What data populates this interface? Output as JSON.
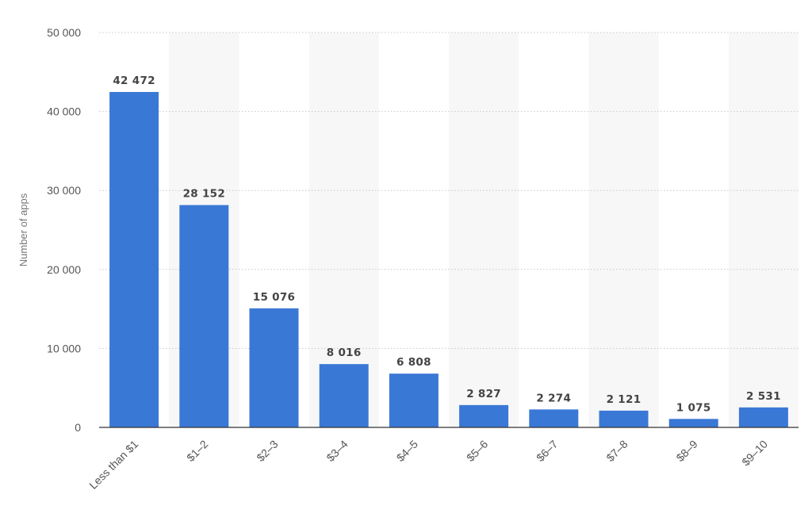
{
  "chart_data": {
    "type": "bar",
    "categories": [
      "Less than $1",
      "$1–2",
      "$2–3",
      "$3–4",
      "$4–5",
      "$5–6",
      "$6–7",
      "$7–8",
      "$8–9",
      "$9–10"
    ],
    "values": [
      42472,
      28152,
      15076,
      8016,
      6808,
      2827,
      2274,
      2121,
      1075,
      2531
    ],
    "value_labels": [
      "42 472",
      "28 152",
      "15 076",
      "8 016",
      "6 808",
      "2 827",
      "2 274",
      "2 121",
      "1 075",
      "2 531"
    ],
    "title": "",
    "xlabel": "",
    "ylabel": "Number of apps",
    "ylim": [
      0,
      50000
    ],
    "yticks": [
      0,
      10000,
      20000,
      30000,
      40000,
      50000
    ],
    "ytick_labels": [
      "0",
      "10 000",
      "20 000",
      "30 000",
      "40 000",
      "50 000"
    ],
    "grid": true,
    "grid_style": "dotted",
    "alternating_column_bands": true,
    "legend": "none",
    "colors": {
      "bar": "#3a78d6",
      "band": "#f7f7f7",
      "grid": "#c8c8c8",
      "axis": "#333333"
    }
  }
}
